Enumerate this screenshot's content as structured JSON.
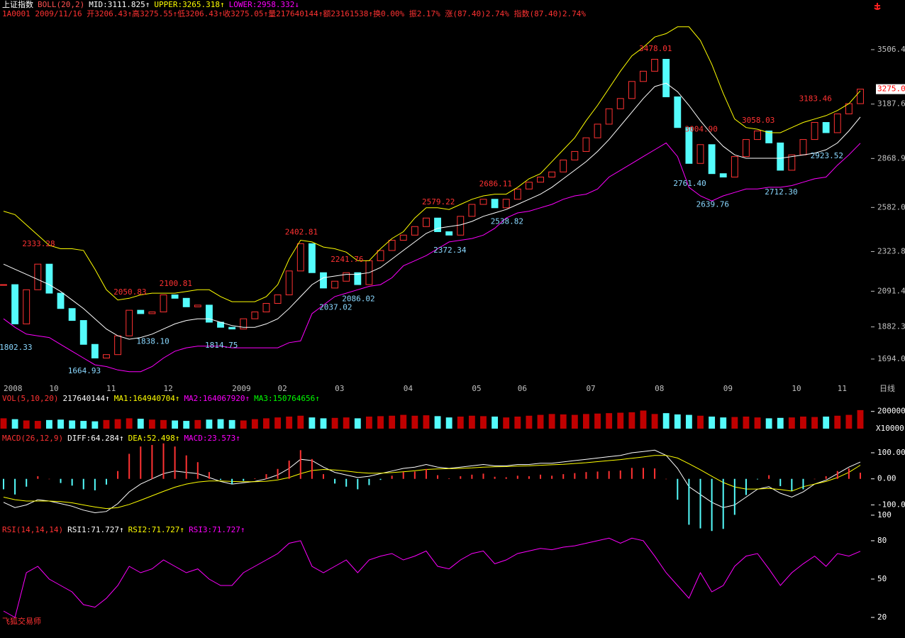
{
  "chart_data": [
    {
      "type": "candlestick",
      "header": [
        {
          "text": "上证指数",
          "color": "#ffffff"
        },
        {
          "text": "BOLL(20,2)",
          "color": "#ff5050"
        }
      ],
      "subtitle": "1A0001 2009/11/16 开3206.43↑高3275.55↑低3206.43↑收3275.05↑量217640144↑额23161538↑换0.00% 振2.17% 涨(87.40)2.74% 指数(87.40)2.74%",
      "subtitle_color": "#ff3232",
      "color": "#ff3232",
      "down_color": "#54fcfc",
      "axis_color": "#c0c0c0",
      "ylim": [
        1594,
        3714
      ],
      "yticks": [
        {
          "value": 1694,
          "label": "1694.0"
        },
        1882.3,
        2091.4,
        2323.8,
        {
          "value": 2582,
          "label": "2582.0"
        },
        2868.9,
        3187.6,
        3506.4
      ],
      "xticks": [
        {
          "value": 0,
          "label": "2008"
        },
        {
          "value": 4,
          "label": "10"
        },
        {
          "value": 9,
          "label": "11"
        },
        {
          "value": 14,
          "label": "12"
        },
        {
          "value": 20,
          "label": "2009"
        },
        {
          "value": 24,
          "label": "02"
        },
        {
          "value": 29,
          "label": "03"
        },
        {
          "value": 35,
          "label": "04"
        },
        {
          "value": 41,
          "label": "05"
        },
        {
          "value": 45,
          "label": "06"
        },
        {
          "value": 51,
          "label": "07"
        },
        {
          "value": 57,
          "label": "08"
        },
        {
          "value": 63,
          "label": "09"
        },
        {
          "value": 69,
          "label": "10"
        },
        {
          "value": 73,
          "label": "11"
        }
      ],
      "period_label": "日线",
      "last_price": {
        "value": 3275.0,
        "label": "3275.0"
      },
      "values": [
        2130,
        1900,
        2100,
        2250,
        2080,
        1990,
        1920,
        1780,
        1700,
        1720,
        1830,
        1980,
        1960,
        1970,
        2070,
        2050,
        2000,
        2010,
        1910,
        1880,
        1870,
        1930,
        1970,
        2020,
        2070,
        2210,
        2370,
        2200,
        2110,
        2150,
        2200,
        2130,
        2270,
        2330,
        2390,
        2420,
        2470,
        2520,
        2440,
        2420,
        2530,
        2600,
        2630,
        2580,
        2630,
        2690,
        2730,
        2760,
        2790,
        2860,
        2910,
        2990,
        3070,
        3160,
        3220,
        3320,
        3380,
        3450,
        3230,
        3050,
        2840,
        2950,
        2780,
        2760,
        2880,
        2980,
        3030,
        2960,
        2800,
        2890,
        2980,
        3080,
        3020,
        3130,
        3190,
        3275.05
      ],
      "series": [
        {
          "name": "MID:3111.825↑",
          "color": "#ffffff",
          "values": [
            2250,
            2220,
            2190,
            2160,
            2130,
            2090,
            2040,
            1990,
            1930,
            1870,
            1830,
            1810,
            1820,
            1840,
            1870,
            1900,
            1920,
            1930,
            1930,
            1910,
            1890,
            1880,
            1880,
            1900,
            1930,
            1990,
            2060,
            2130,
            2170,
            2180,
            2190,
            2190,
            2200,
            2230,
            2280,
            2330,
            2380,
            2430,
            2460,
            2470,
            2480,
            2500,
            2530,
            2550,
            2570,
            2600,
            2630,
            2660,
            2700,
            2750,
            2800,
            2850,
            2910,
            2980,
            3060,
            3140,
            3220,
            3290,
            3310,
            3260,
            3180,
            3090,
            3010,
            2940,
            2890,
            2870,
            2870,
            2870,
            2870,
            2880,
            2890,
            2900,
            2920,
            2960,
            3030,
            3111.825
          ]
        },
        {
          "name": "UPPER:3265.318↑",
          "color": "#ffff00",
          "values": [
            2560,
            2540,
            2480,
            2420,
            2360,
            2340,
            2340,
            2330,
            2220,
            2100,
            2040,
            2050,
            2070,
            2080,
            2080,
            2080,
            2090,
            2100,
            2100,
            2060,
            2030,
            2030,
            2030,
            2060,
            2130,
            2280,
            2390,
            2380,
            2350,
            2340,
            2320,
            2270,
            2270,
            2340,
            2400,
            2440,
            2520,
            2580,
            2580,
            2570,
            2600,
            2630,
            2650,
            2660,
            2660,
            2700,
            2750,
            2780,
            2850,
            2920,
            2990,
            3090,
            3180,
            3280,
            3380,
            3470,
            3520,
            3580,
            3600,
            3640,
            3640,
            3560,
            3420,
            3250,
            3100,
            3050,
            3040,
            3020,
            3020,
            3050,
            3080,
            3100,
            3120,
            3150,
            3190,
            3265.318
          ]
        },
        {
          "name": "LOWER:2958.332↓",
          "color": "#ff00ff",
          "values": [
            1930,
            1880,
            1840,
            1830,
            1820,
            1780,
            1740,
            1700,
            1660,
            1650,
            1630,
            1620,
            1620,
            1650,
            1700,
            1740,
            1760,
            1770,
            1770,
            1770,
            1760,
            1760,
            1760,
            1760,
            1760,
            1790,
            1800,
            1960,
            2010,
            2060,
            2080,
            2100,
            2120,
            2130,
            2170,
            2240,
            2270,
            2300,
            2340,
            2380,
            2390,
            2400,
            2420,
            2460,
            2520,
            2550,
            2560,
            2580,
            2600,
            2630,
            2650,
            2660,
            2690,
            2760,
            2800,
            2840,
            2880,
            2920,
            2960,
            2880,
            2700,
            2650,
            2620,
            2650,
            2670,
            2690,
            2690,
            2700,
            2700,
            2710,
            2730,
            2750,
            2760,
            2830,
            2890,
            2958.332
          ]
        }
      ],
      "annotations": [
        {
          "value": 2333.28,
          "label": "2333.28",
          "index": 3,
          "color": "#ff3232"
        },
        {
          "value": 1802.33,
          "label": "1802.33",
          "index": 1,
          "color": "#8ad8ff"
        },
        {
          "value": 1664.93,
          "label": "1664.93",
          "index": 7,
          "color": "#8ad8ff"
        },
        {
          "value": 2050.83,
          "label": "2050.83",
          "index": 11,
          "color": "#ff3232"
        },
        {
          "value": 1838.1,
          "label": "1838.10",
          "index": 13,
          "color": "#8ad8ff"
        },
        {
          "value": 2100.81,
          "label": "2100.81",
          "index": 15,
          "color": "#ff3232"
        },
        {
          "value": 1814.75,
          "label": "1814.75",
          "index": 19,
          "color": "#8ad8ff"
        },
        {
          "value": 2402.81,
          "label": "2402.81",
          "index": 26,
          "color": "#ff3232"
        },
        {
          "value": 2037.02,
          "label": "2037.02",
          "index": 29,
          "color": "#8ad8ff"
        },
        {
          "value": 2241.76,
          "label": "2241.76",
          "index": 30,
          "color": "#ff3232"
        },
        {
          "value": 2086.02,
          "label": "2086.02",
          "index": 31,
          "color": "#8ad8ff"
        },
        {
          "value": 2579.22,
          "label": "2579.22",
          "index": 38,
          "color": "#ff3232"
        },
        {
          "value": 2372.34,
          "label": "2372.34",
          "index": 39,
          "color": "#8ad8ff"
        },
        {
          "value": 2686.11,
          "label": "2686.11",
          "index": 43,
          "color": "#ff3232"
        },
        {
          "value": 2538.82,
          "label": "2538.82",
          "index": 44,
          "color": "#8ad8ff"
        },
        {
          "value": 3478.01,
          "label": "3478.01",
          "index": 57,
          "color": "#ff3232"
        },
        {
          "value": 2761.4,
          "label": "2761.40",
          "index": 60,
          "color": "#8ad8ff"
        },
        {
          "value": 3004.9,
          "label": "3004.90",
          "index": 61,
          "color": "#ff3232"
        },
        {
          "value": 2639.76,
          "label": "2639.76",
          "index": 62,
          "color": "#8ad8ff"
        },
        {
          "value": 3058.03,
          "label": "3058.03",
          "index": 66,
          "color": "#ff3232"
        },
        {
          "value": 2712.3,
          "label": "2712.30",
          "index": 68,
          "color": "#8ad8ff"
        },
        {
          "value": 3183.46,
          "label": "3183.46",
          "index": 71,
          "color": "#ff3232"
        },
        {
          "value": 2923.52,
          "label": "2923.52",
          "index": 72,
          "color": "#8ad8ff"
        }
      ]
    },
    {
      "type": "bar",
      "header": [
        {
          "text": "VOL(5,10,20)",
          "color": "#ff3232"
        },
        {
          "text": "217640144↑",
          "color": "#ffffff"
        },
        {
          "text": "MA1:164940704↑",
          "color": "#ffff00"
        },
        {
          "text": "MA2:164067920↑",
          "color": "#ff00ff"
        },
        {
          "text": "MA3:150764656↑",
          "color": "#00ff00"
        }
      ],
      "color": "#c00000",
      "down_color": "#54fcfc",
      "axis_color": "#ffffff",
      "ylim": [
        0,
        280000
      ],
      "yticks": [
        200000
      ],
      "unit_label": "X10000",
      "values": [
        120000,
        110000,
        95000,
        90000,
        100000,
        105000,
        95000,
        90000,
        85000,
        100000,
        110000,
        120000,
        115000,
        105000,
        100000,
        95000,
        90000,
        100000,
        105000,
        110000,
        100000,
        95000,
        110000,
        120000,
        130000,
        140000,
        150000,
        130000,
        120000,
        125000,
        130000,
        120000,
        140000,
        145000,
        150000,
        160000,
        150000,
        155000,
        145000,
        130000,
        140000,
        150000,
        145000,
        140000,
        130000,
        140000,
        150000,
        160000,
        170000,
        165000,
        160000,
        170000,
        175000,
        180000,
        185000,
        190000,
        210000,
        170000,
        180000,
        165000,
        160000,
        150000,
        140000,
        130000,
        135000,
        140000,
        130000,
        120000,
        125000,
        130000,
        140000,
        135000,
        140000,
        150000,
        160000,
        215000
      ]
    },
    {
      "type": "line",
      "header": [
        {
          "text": "MACD(26,12,9)",
          "color": "#ff3232"
        }
      ],
      "axis_color": "#ffffff",
      "ylim": [
        -164,
        149
      ],
      "yticks": [
        {
          "value": 100,
          "label": "100.00"
        },
        {
          "value": 0,
          "label": "0.00"
        },
        {
          "value": -100,
          "label": "-100.0"
        }
      ],
      "series": [
        {
          "name": "DIFF:64.284↑",
          "color": "#ffffff",
          "values": [
            -90,
            -110,
            -100,
            -80,
            -85,
            -95,
            -105,
            -120,
            -130,
            -125,
            -95,
            -50,
            -20,
            0,
            20,
            30,
            25,
            20,
            5,
            -10,
            -20,
            -15,
            -10,
            0,
            15,
            40,
            75,
            70,
            45,
            25,
            15,
            5,
            10,
            20,
            30,
            40,
            45,
            55,
            45,
            40,
            45,
            50,
            55,
            50,
            50,
            55,
            55,
            60,
            60,
            65,
            70,
            75,
            80,
            85,
            90,
            100,
            105,
            110,
            90,
            40,
            -30,
            -60,
            -90,
            -110,
            -100,
            -70,
            -40,
            -30,
            -55,
            -70,
            -50,
            -20,
            -5,
            20,
            45,
            64.284
          ]
        },
        {
          "name": "DEA:52.498↑",
          "color": "#ffff00",
          "values": [
            -70,
            -80,
            -85,
            -85,
            -85,
            -87,
            -92,
            -100,
            -108,
            -114,
            -110,
            -98,
            -82,
            -65,
            -48,
            -32,
            -20,
            -12,
            -8,
            -8,
            -10,
            -11,
            -11,
            -9,
            -4,
            5,
            20,
            32,
            36,
            34,
            30,
            25,
            22,
            22,
            24,
            27,
            31,
            36,
            38,
            39,
            40,
            42,
            45,
            46,
            47,
            49,
            50,
            52,
            54,
            56,
            59,
            62,
            66,
            70,
            74,
            79,
            84,
            90,
            90,
            80,
            58,
            35,
            10,
            -14,
            -31,
            -39,
            -39,
            -37,
            -41,
            -47,
            -30,
            -20,
            -10,
            5,
            25,
            52.498
          ]
        },
        {
          "name": "MACD:23.573↑",
          "type": "bar",
          "color": "#ff3232",
          "down_color": "#54fcfc",
          "legend_color": "#ff00ff",
          "values": [
            -40,
            -60,
            -30,
            10,
            0,
            -16,
            -26,
            -40,
            -44,
            -22,
            30,
            96,
            124,
            130,
            136,
            124,
            90,
            64,
            26,
            -4,
            -20,
            -8,
            2,
            18,
            38,
            70,
            110,
            76,
            18,
            -18,
            -30,
            -40,
            -24,
            -4,
            12,
            26,
            28,
            38,
            14,
            2,
            10,
            16,
            20,
            8,
            6,
            12,
            10,
            16,
            12,
            18,
            22,
            26,
            28,
            30,
            32,
            42,
            42,
            40,
            0,
            -80,
            -176,
            -190,
            -200,
            -192,
            -138,
            -62,
            -2,
            14,
            -28,
            -46,
            -40,
            0,
            10,
            30,
            40,
            23.573
          ]
        }
      ]
    },
    {
      "type": "line",
      "header": [
        {
          "text": "RSI(14,14,14)",
          "color": "#ff3232"
        },
        {
          "text": "RSI1:71.727↑",
          "color": "#ffffff"
        },
        {
          "text": "RSI2:71.727↑",
          "color": "#ffff00"
        }
      ],
      "axis_color": "#ffffff",
      "ylim": [
        8.9,
        104.4
      ],
      "yticks": [
        20,
        50,
        80,
        100
      ],
      "series": [
        {
          "name": "RSI3:71.727↑",
          "color": "#ff00ff",
          "values": [
            25,
            20,
            55,
            60,
            50,
            45,
            40,
            30,
            28,
            35,
            45,
            60,
            55,
            58,
            65,
            60,
            55,
            58,
            50,
            45,
            45,
            55,
            60,
            65,
            70,
            78,
            80,
            60,
            55,
            60,
            65,
            55,
            65,
            68,
            70,
            65,
            68,
            72,
            60,
            58,
            65,
            70,
            72,
            62,
            65,
            70,
            72,
            74,
            73,
            75,
            76,
            78,
            80,
            82,
            78,
            82,
            80,
            68,
            55,
            45,
            35,
            55,
            40,
            45,
            60,
            68,
            70,
            58,
            45,
            55,
            62,
            68,
            60,
            70,
            68,
            71.727
          ]
        }
      ]
    }
  ],
  "footer": "飞狐交易师"
}
